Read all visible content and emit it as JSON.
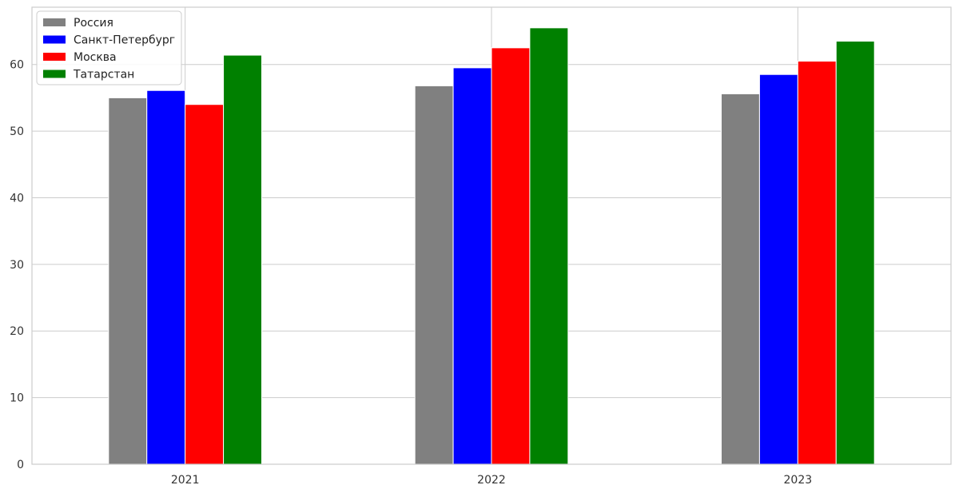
{
  "chart_data": {
    "type": "bar",
    "title": "",
    "xlabel": "",
    "ylabel": "",
    "categories": [
      "2021",
      "2022",
      "2023"
    ],
    "series": [
      {
        "name": "Россия",
        "color": "#808080",
        "values": [
          55.0,
          56.8,
          55.6
        ]
      },
      {
        "name": "Санкт-Петербург",
        "color": "#0000ff",
        "values": [
          56.1,
          59.5,
          58.5
        ]
      },
      {
        "name": "Москва",
        "color": "#ff0000",
        "values": [
          54.0,
          62.5,
          60.5
        ]
      },
      {
        "name": "Татарстан",
        "color": "#008000",
        "values": [
          61.4,
          65.5,
          63.5
        ]
      }
    ],
    "ylim": [
      0,
      68.6
    ],
    "yticks": [
      0,
      10,
      20,
      30,
      40,
      50,
      60
    ],
    "ytick_labels": [
      "0",
      "10",
      "20",
      "30",
      "40",
      "50",
      "60"
    ],
    "grid": true,
    "legend_position": "top-left"
  }
}
